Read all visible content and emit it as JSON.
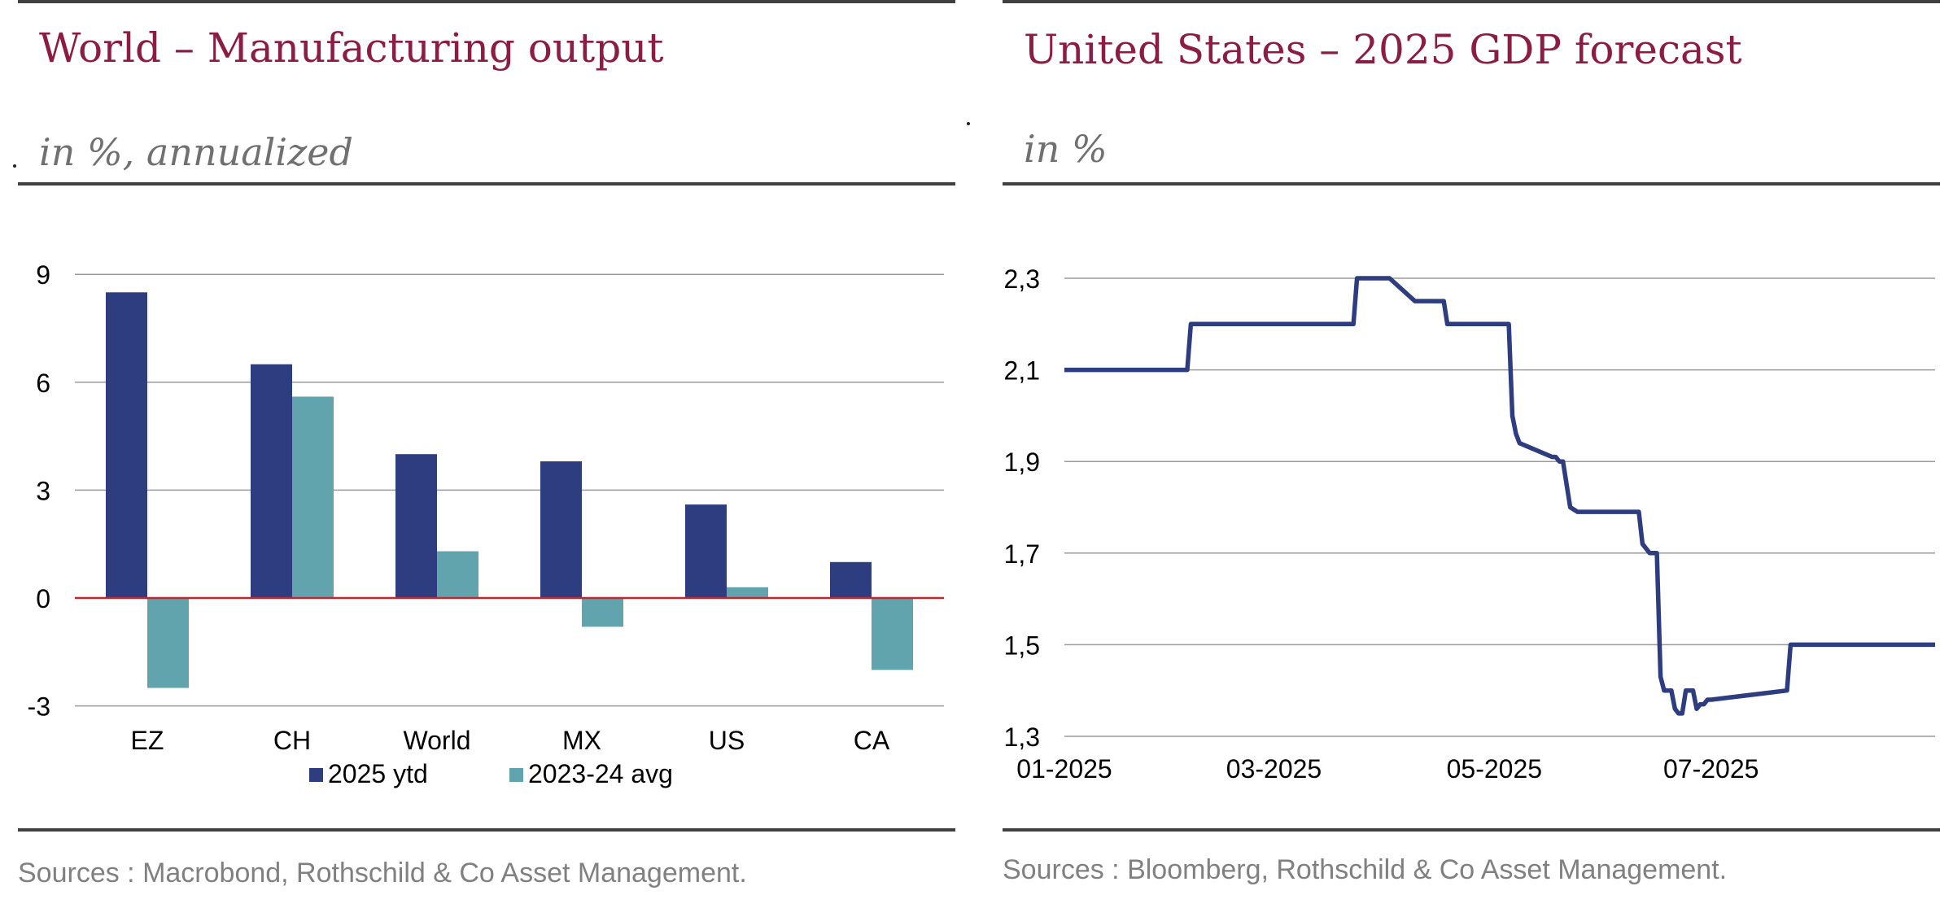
{
  "left": {
    "title": "World – Manufacturing output",
    "subtitle": "in %, annualized",
    "source": "Sources : Macrobond, Rothschild & Co Asset Management."
  },
  "right": {
    "title": "United States – 2025 GDP forecast",
    "subtitle": "in %",
    "source": "Sources : Bloomberg, Rothschild & Co Asset Management."
  },
  "colors": {
    "title": "#8c1c44",
    "navy": "#2e3c80",
    "teal": "#62a4ae",
    "zero_line": "#c0282d",
    "grid": "#9a9a9a"
  },
  "chart_data": [
    {
      "type": "bar",
      "categories": [
        "EZ",
        "CH",
        "World",
        "MX",
        "US",
        "CA"
      ],
      "series": [
        {
          "name": "2025 ytd",
          "values": [
            8.5,
            6.5,
            4.0,
            3.8,
            2.6,
            1.0
          ]
        },
        {
          "name": "2023-24 avg",
          "values": [
            -2.5,
            5.6,
            1.3,
            -0.8,
            0.3,
            -2.0
          ]
        }
      ],
      "yticks": [
        9,
        6,
        3,
        0,
        -3
      ],
      "ylim": [
        -3,
        9
      ],
      "legend": "bottom",
      "grid": true
    },
    {
      "type": "line",
      "series": [
        {
          "x": [
            "2025-01-02",
            "2025-02-05",
            "2025-02-06",
            "2025-03-23",
            "2025-03-24",
            "2025-04-02",
            "2025-04-09",
            "2025-04-10",
            "2025-04-17",
            "2025-04-18",
            "2025-05-01",
            "2025-05-05",
            "2025-05-06",
            "2025-05-07",
            "2025-05-08",
            "2025-05-17",
            "2025-05-18",
            "2025-05-19",
            "2025-05-20",
            "2025-05-22",
            "2025-05-24",
            "2025-06-10",
            "2025-06-11",
            "2025-06-13",
            "2025-06-15",
            "2025-06-16",
            "2025-06-17",
            "2025-06-19",
            "2025-06-20",
            "2025-06-21",
            "2025-06-22",
            "2025-06-23",
            "2025-06-25",
            "2025-06-26",
            "2025-06-27",
            "2025-06-28",
            "2025-06-29",
            "2025-06-30",
            "2025-07-21",
            "2025-07-22",
            "2025-08-31"
          ],
          "values": [
            2.1,
            2.1,
            2.2,
            2.2,
            2.3,
            2.3,
            2.25,
            2.25,
            2.25,
            2.2,
            2.2,
            2.2,
            2.0,
            1.96,
            1.94,
            1.91,
            1.91,
            1.9,
            1.9,
            1.8,
            1.79,
            1.79,
            1.72,
            1.7,
            1.7,
            1.43,
            1.4,
            1.4,
            1.36,
            1.35,
            1.35,
            1.4,
            1.4,
            1.36,
            1.37,
            1.37,
            1.38,
            1.38,
            1.4,
            1.5,
            1.5
          ]
        }
      ],
      "x_ticks": [
        "01-2025",
        "03-2025",
        "05-2025",
        "07-2025"
      ],
      "yticks": [
        "2,3",
        "2,1",
        "1,9",
        "1,7",
        "1,5",
        "1,3"
      ],
      "ylim": [
        1.3,
        2.3
      ],
      "grid": true
    }
  ]
}
